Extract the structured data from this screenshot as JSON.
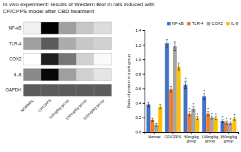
{
  "chart_data": [
    {
      "type": "heatmap",
      "title": "In vivo experiment: results of Western Blot in rats induced with\nCP/CPPS model after CBD treatment",
      "x": [
        "NORMAL",
        "CP/CPPS",
        "50mg/Kg group",
        "100mg/Kg group",
        "150mg/Kg group"
      ],
      "y": [
        "NF-κB",
        "TLR-4",
        "COX2",
        "IL-8",
        "GAPDH"
      ],
      "cells": [
        [
          0.3,
          0.92,
          0.55,
          0.45,
          0.38
        ],
        [
          0.55,
          0.72,
          0.52,
          0.45,
          0.42
        ],
        [
          0.22,
          0.85,
          0.65,
          0.42,
          0.25
        ],
        [
          0.6,
          0.9,
          0.55,
          0.42,
          0.35
        ],
        [
          0.72,
          0.72,
          0.72,
          0.72,
          0.72
        ]
      ]
    },
    {
      "type": "bar",
      "categories": [
        "Normal",
        "CP/CPPS",
        "50mg/kg\ngroup",
        "100mg/kg\ngroup",
        "150mg/kg\ngroup"
      ],
      "series": [
        {
          "name": "NF-κB",
          "color": "#4472c4",
          "values": [
            0.38,
            1.22,
            0.65,
            0.49,
            0.15
          ],
          "errors": [
            0.03,
            0.05,
            0.05,
            0.04,
            0.02
          ],
          "annotations": [
            null,
            null,
            "*",
            "*",
            "*"
          ]
        },
        {
          "name": "TLR-4",
          "color": "#ed7d31",
          "values": [
            0.17,
            0.59,
            0.25,
            0.25,
            0.13
          ],
          "errors": [
            0.02,
            0.04,
            0.03,
            0.03,
            0.02
          ],
          "annotations": [
            null,
            null,
            "*",
            "*",
            "*"
          ]
        },
        {
          "name": "COX2",
          "color": "#a5a5a5",
          "values": [
            0.1,
            1.18,
            0.32,
            0.2,
            0.12
          ],
          "errors": [
            0.02,
            0.06,
            0.03,
            0.02,
            0.02
          ],
          "annotations": [
            null,
            null,
            "*",
            "*",
            "*"
          ]
        },
        {
          "name": "IL-8",
          "color": "#ffc000",
          "values": [
            0.35,
            0.9,
            0.19,
            0.19,
            0.18
          ],
          "errors": [
            0.03,
            0.05,
            0.02,
            0.02,
            0.02
          ],
          "annotations": [
            null,
            null,
            "*",
            "*",
            "*"
          ]
        }
      ],
      "ylabel": "Ratio of protein in each group",
      "ylim": [
        0,
        1.4
      ],
      "yticks": [
        {
          "value": 0,
          "label": "0.0"
        },
        0.2,
        0.4,
        0.6,
        0.8,
        {
          "value": 1.0,
          "label": "1.0"
        },
        1.2,
        1.4
      ],
      "legend": "upper right",
      "grid": false
    }
  ]
}
